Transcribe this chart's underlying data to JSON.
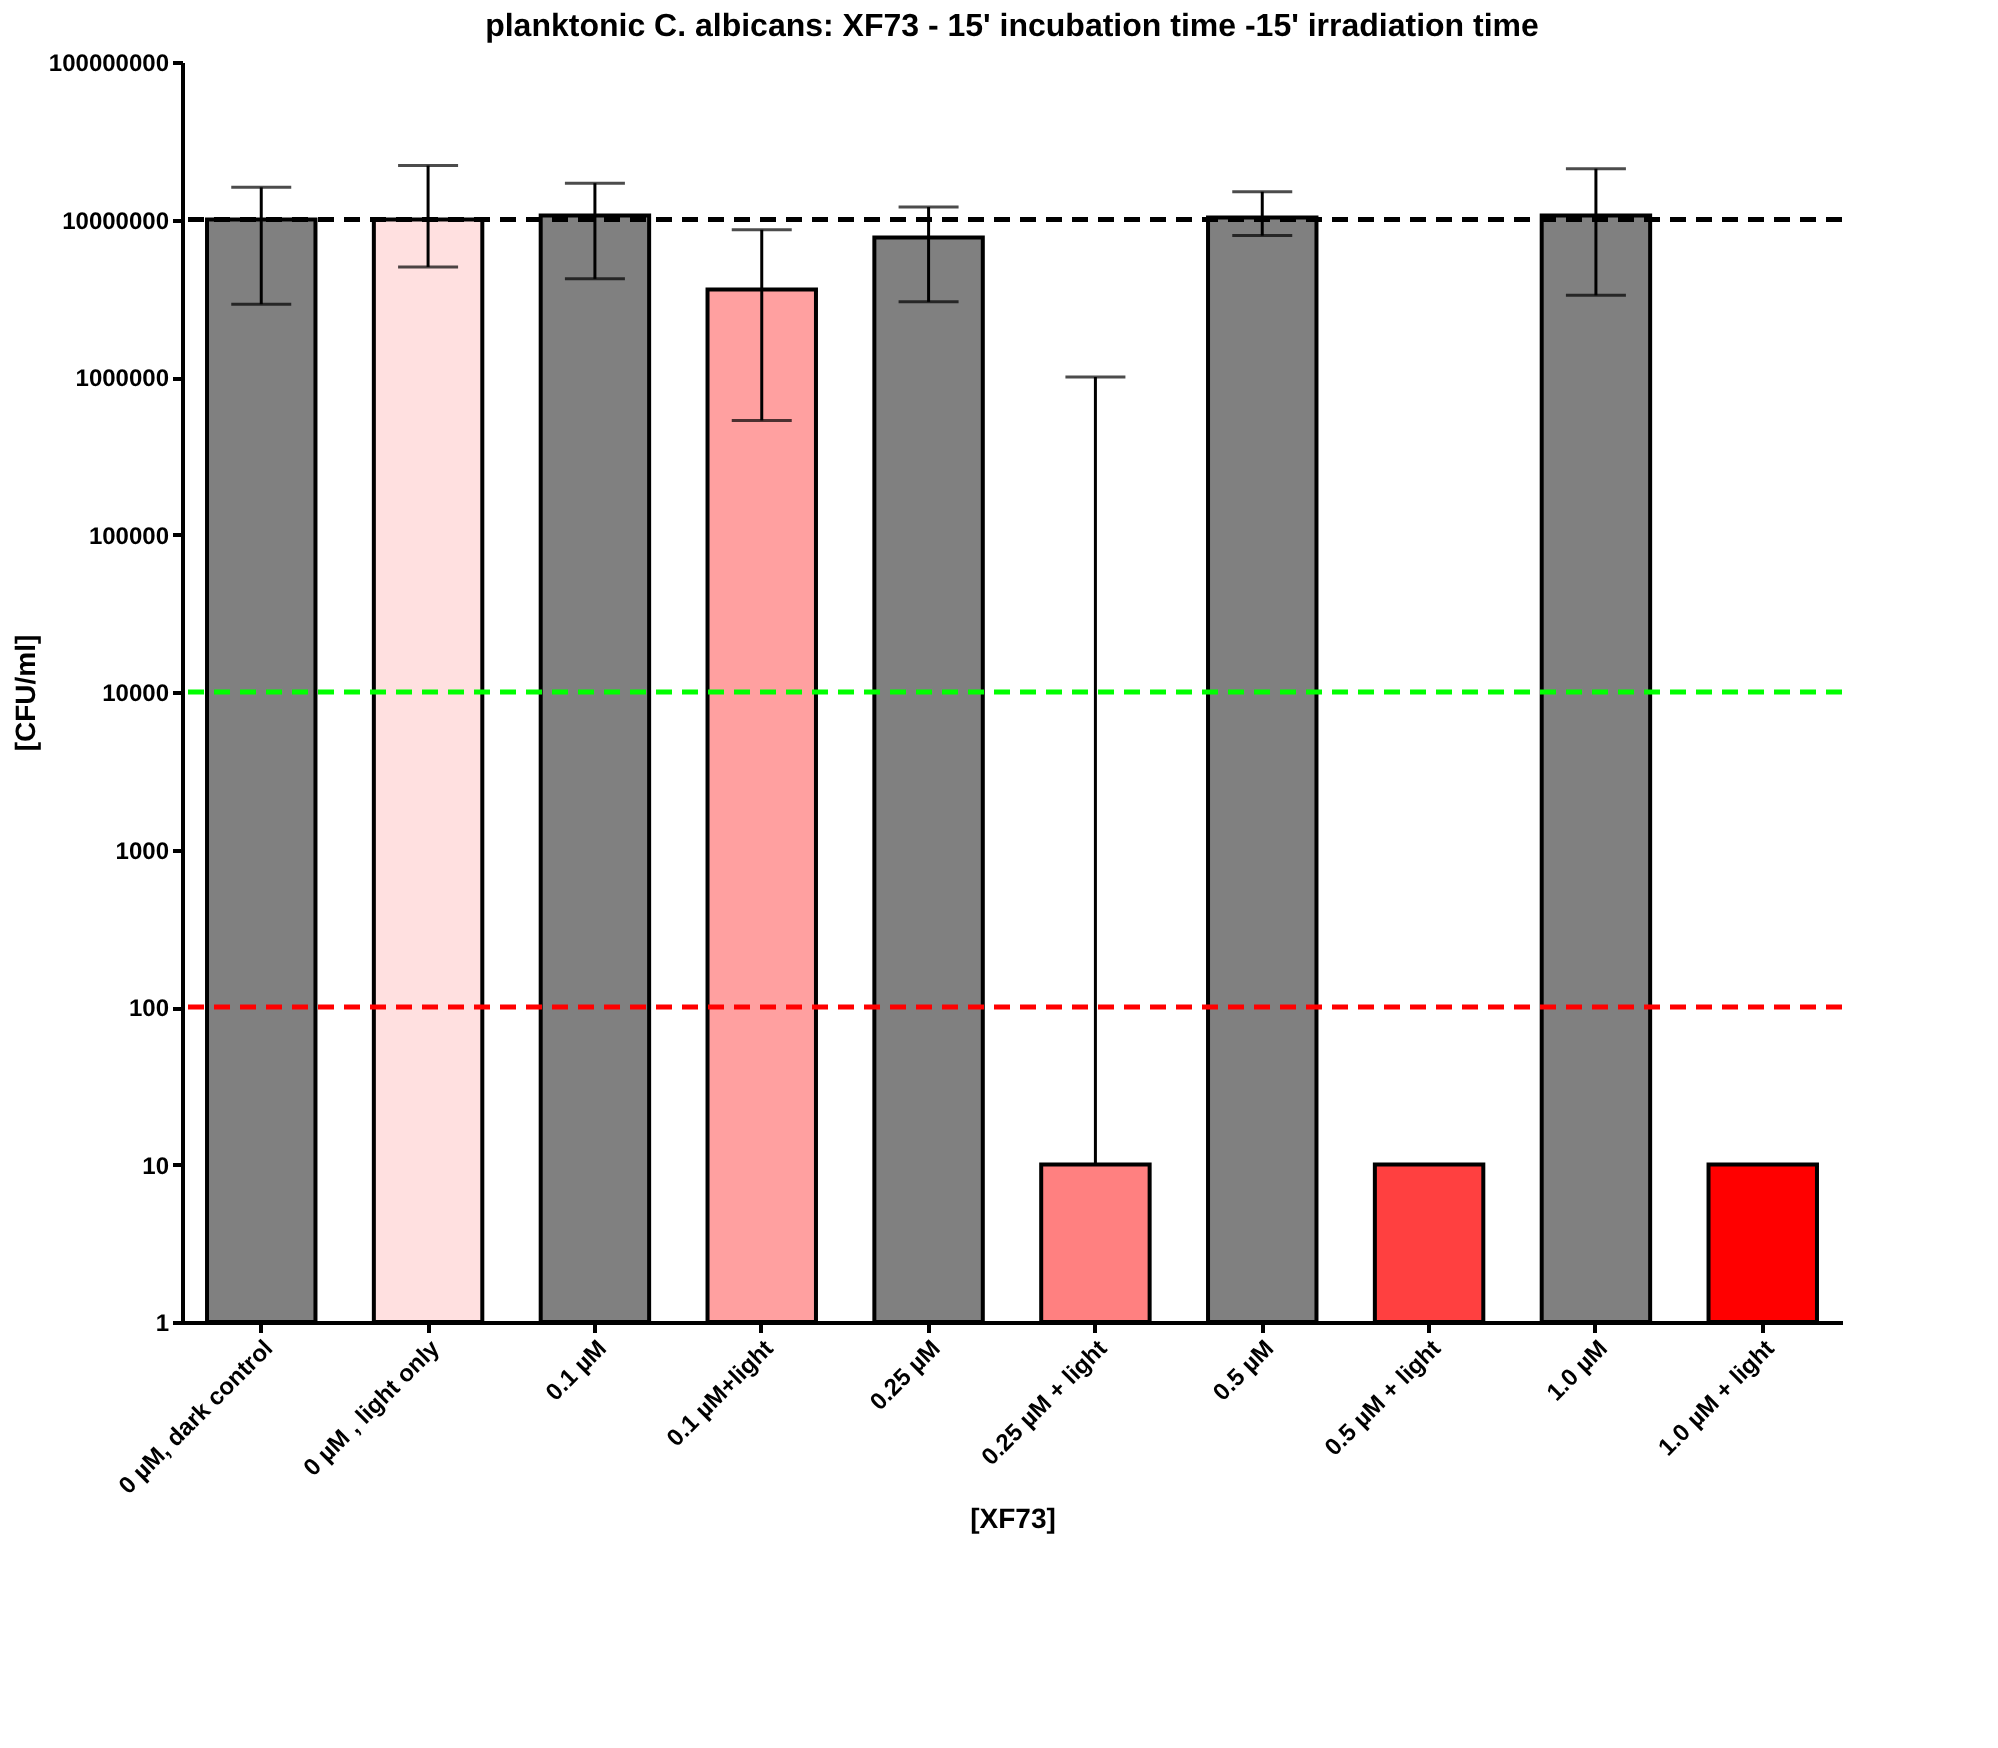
{
  "chart_data": {
    "type": "bar",
    "title": "planktonic C. albicans: XF73 - 15' incubation time -15' irradiation time",
    "xlabel": "[XF73]",
    "ylabel": "[CFU/ml]",
    "categories": [
      "0 µM, dark control",
      "0 µM , light only",
      "0.1 µM",
      "0.1 µM+light",
      "0.25 µM",
      "0.25 µM + light",
      "0.5 µM",
      "0.5 µM + light",
      "1.0 µM",
      "1.0 µM + light"
    ],
    "values": [
      10000000,
      10000000,
      10600000,
      3600000,
      7700000,
      10,
      10300000,
      10,
      10600000,
      10
    ],
    "colors": [
      "#808080",
      "#ffe0e0",
      "#808080",
      "#ffa0a0",
      "#808080",
      "#ff8080",
      "#808080",
      "#ff4040",
      "#808080",
      "#ff0000"
    ],
    "errors": [
      [
        2900000,
        16000000
      ],
      [
        5000000,
        22000000
      ],
      [
        4200000,
        17000000
      ],
      [
        530000,
        8600000
      ],
      [
        3000000,
        12000000
      ],
      [
        10,
        1000000
      ],
      [
        7900000,
        15000000
      ],
      null,
      [
        3300000,
        21000000
      ],
      null
    ],
    "log": "y",
    "ylim": [
      1,
      100000000
    ],
    "yticks": [
      1,
      10,
      100,
      1000,
      10000,
      100000,
      1000000,
      10000000,
      100000000
    ],
    "ref_lines": [
      {
        "axis": "y",
        "value": 10000000,
        "color": "#000000",
        "line_style": "dashed"
      },
      {
        "axis": "y",
        "value": 10000,
        "color": "#00ff00",
        "line_style": "dashed"
      },
      {
        "axis": "y",
        "value": 100,
        "color": "#ff0000",
        "line_style": "dashed"
      }
    ],
    "grid": false
  }
}
